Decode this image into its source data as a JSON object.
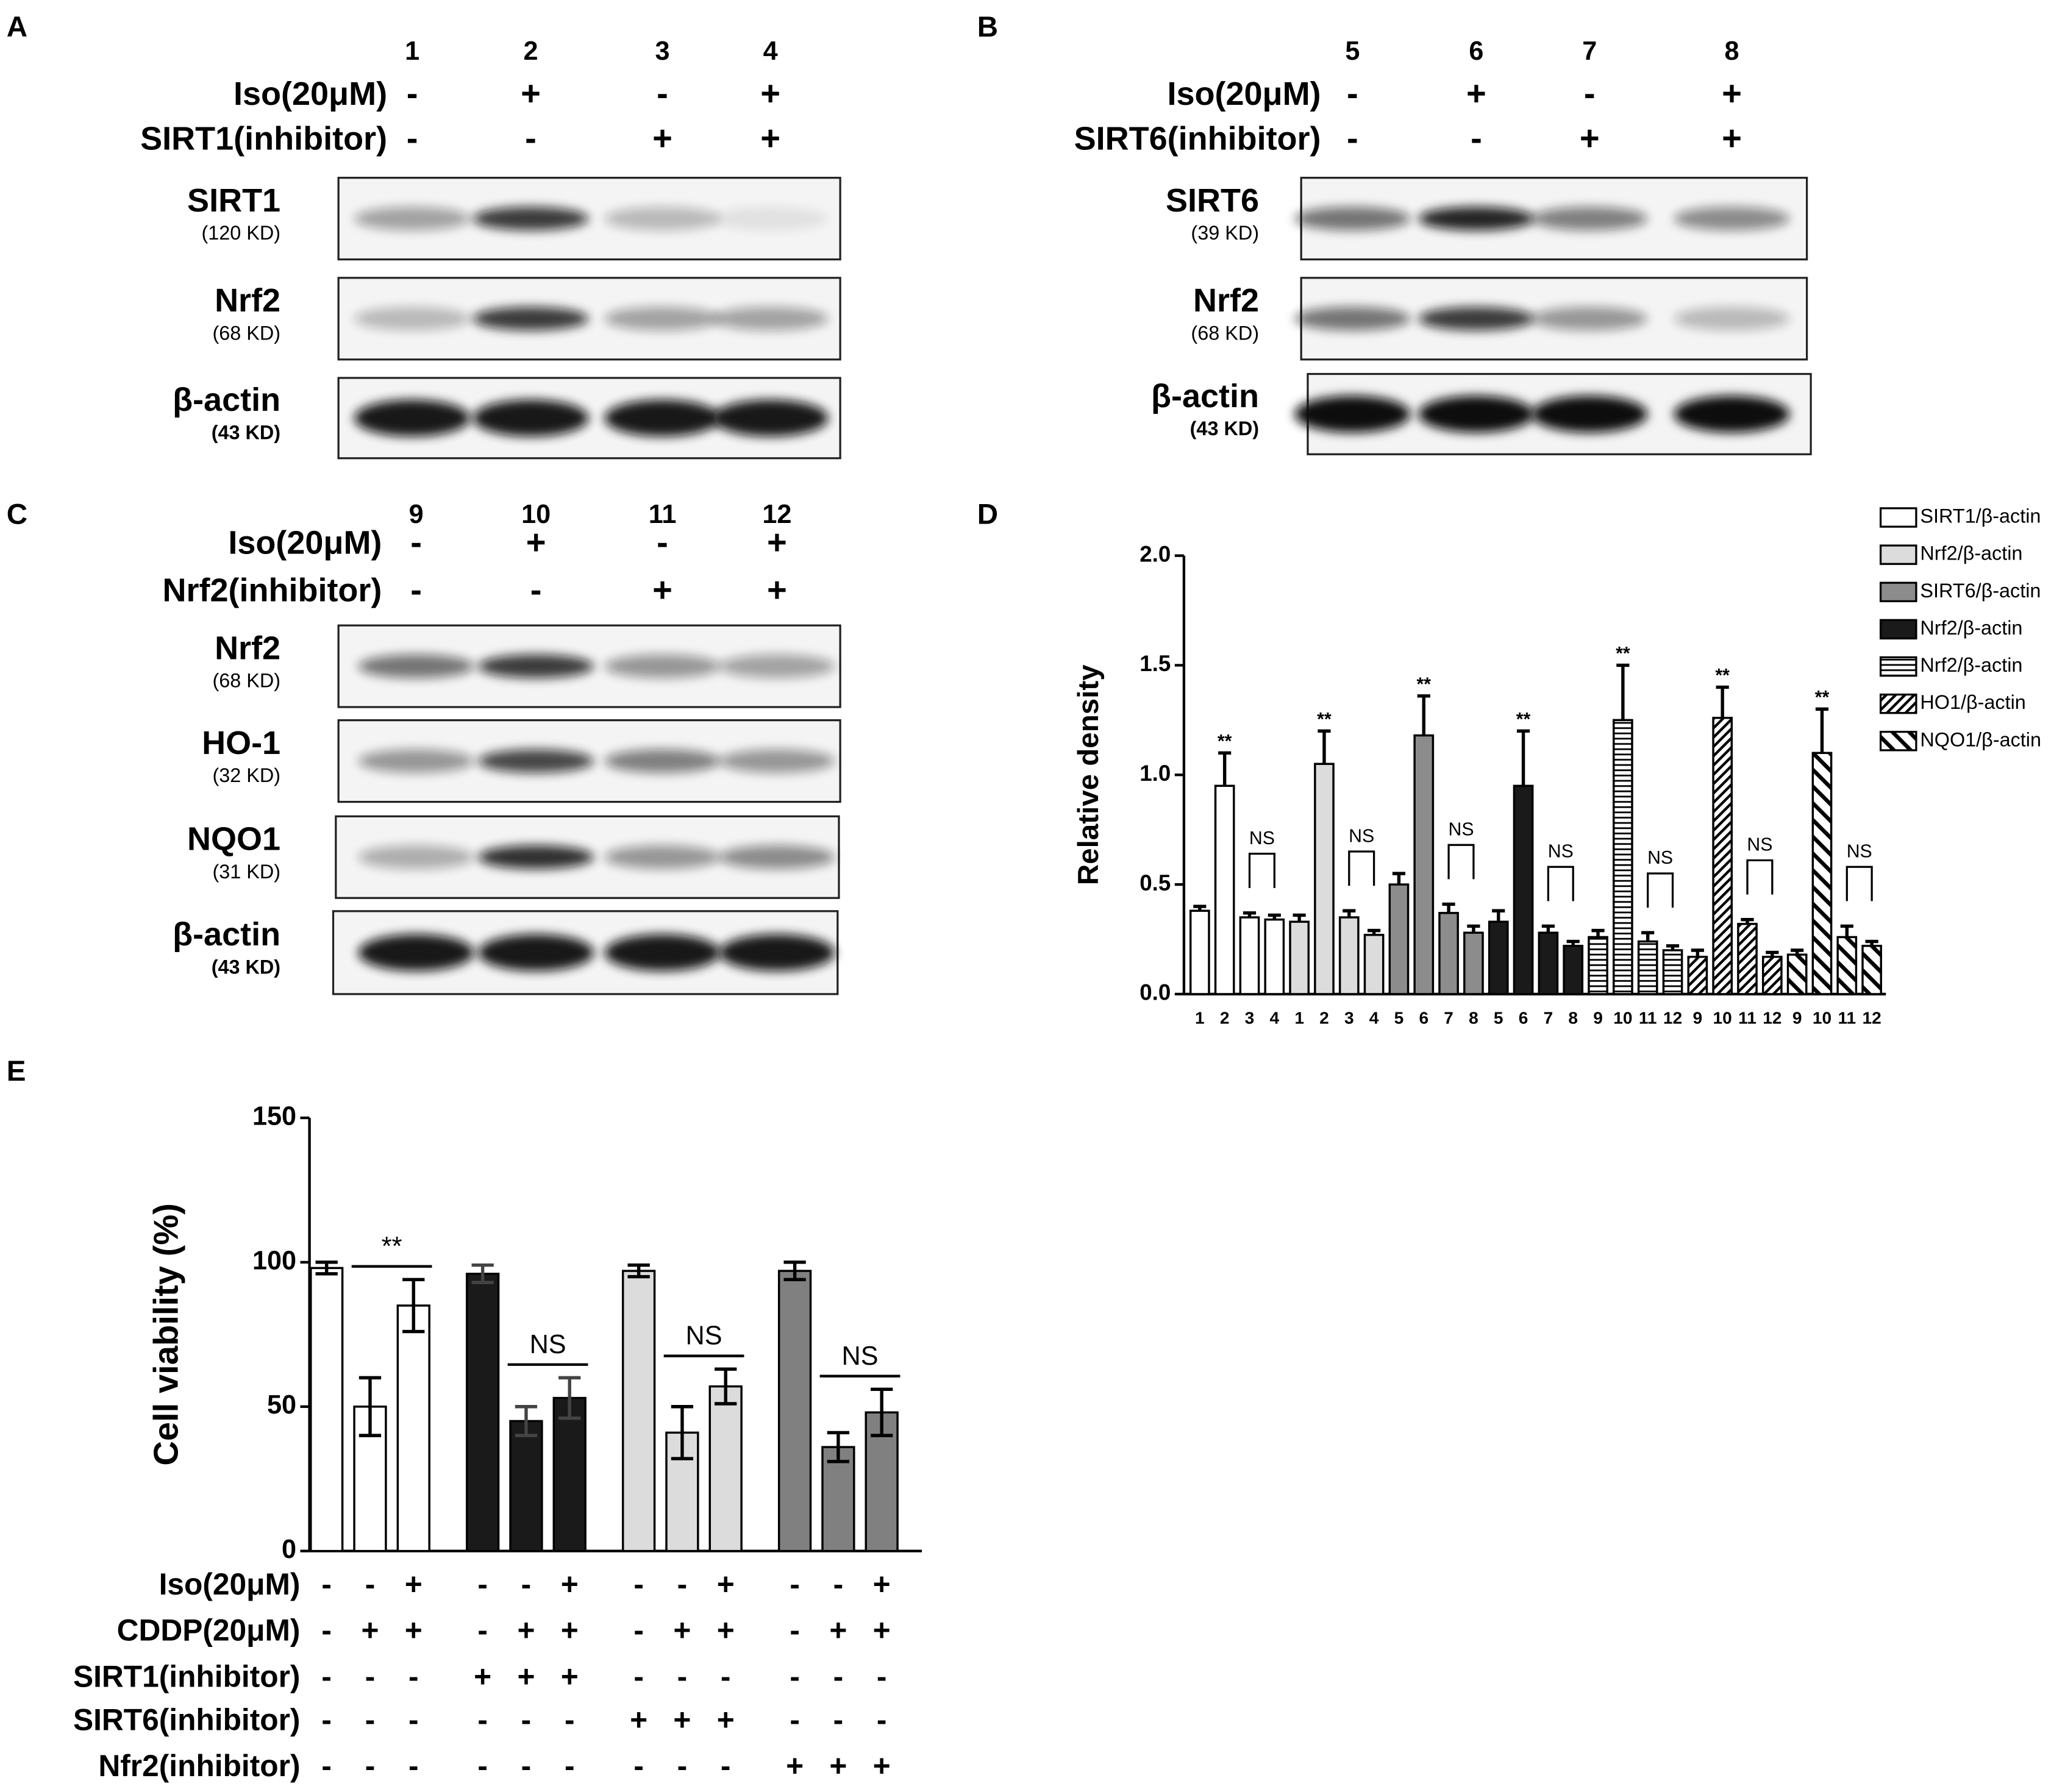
{
  "blots": [
    {
      "label": "A",
      "lanes": [
        "1",
        "2",
        "3",
        "4"
      ],
      "conditions": [
        {
          "name": "Iso(20μM)",
          "signs": [
            "-",
            "+",
            "-",
            "+"
          ]
        },
        {
          "name": "SIRT1(inhibitor)",
          "signs": [
            "-",
            "-",
            "+",
            "+"
          ]
        }
      ],
      "bands": [
        {
          "name": "SIRT1",
          "size": "(120 KD)"
        },
        {
          "name": "Nrf2",
          "size": "(68 KD)"
        },
        {
          "name": "β-actin",
          "size": "(43 KD)"
        }
      ]
    },
    {
      "label": "B",
      "lanes": [
        "5",
        "6",
        "7",
        "8"
      ],
      "conditions": [
        {
          "name": "Iso(20μM)",
          "signs": [
            "-",
            "+",
            "-",
            "+"
          ]
        },
        {
          "name": "SIRT6(inhibitor)",
          "signs": [
            "-",
            "-",
            "+",
            "+"
          ]
        }
      ],
      "bands": [
        {
          "name": "SIRT6",
          "size": "(39 KD)"
        },
        {
          "name": "Nrf2",
          "size": "(68 KD)"
        },
        {
          "name": "β-actin",
          "size": "(43 KD)"
        }
      ]
    },
    {
      "label": "C",
      "lanes": [
        "9",
        "10",
        "11",
        "12"
      ],
      "conditions": [
        {
          "name": "Iso(20μM)",
          "signs": [
            "-",
            "+",
            "-",
            "+"
          ]
        },
        {
          "name": "Nrf2(inhibitor)",
          "signs": [
            "-",
            "-",
            "+",
            "+"
          ]
        }
      ],
      "bands": [
        {
          "name": "Nrf2",
          "size": "(68 KD)"
        },
        {
          "name": "HO-1",
          "size": "(32 KD)"
        },
        {
          "name": "NQO1",
          "size": "(31 KD)"
        },
        {
          "name": "β-actin",
          "size": "(43 KD)"
        }
      ]
    }
  ],
  "chart_data": [
    {
      "label": "D",
      "type": "bar",
      "ylabel": "Relative density",
      "categories": [
        "1",
        "2",
        "3",
        "4",
        "1",
        "2",
        "3",
        "4",
        "5",
        "6",
        "7",
        "8",
        "5",
        "6",
        "7",
        "8",
        "9",
        "10",
        "11",
        "12",
        "9",
        "10",
        "11",
        "12",
        "9",
        "10",
        "11",
        "12"
      ],
      "ylim": [
        0,
        2
      ],
      "yticks": [
        {
          "value": 0,
          "label": "0.0"
        },
        {
          "value": 0.5,
          "label": "0.5"
        },
        {
          "value": 1,
          "label": "1.0"
        },
        {
          "value": 1.5,
          "label": "1.5"
        },
        {
          "value": 2,
          "label": "2.0"
        }
      ],
      "series": [
        {
          "name": "SIRT1/β-actin",
          "color": "#ffffff",
          "values": [
            0.38,
            0.95,
            0.35,
            0.34,
            null,
            null,
            null,
            null,
            null,
            null,
            null,
            null,
            null,
            null,
            null,
            null,
            null,
            null,
            null,
            null,
            null,
            null,
            null,
            null,
            null,
            null,
            null,
            null
          ],
          "errors": [
            0.02,
            0.15,
            0.02,
            0.02,
            null,
            null,
            null,
            null,
            null,
            null,
            null,
            null,
            null,
            null,
            null,
            null,
            null,
            null,
            null,
            null,
            null,
            null,
            null,
            null,
            null,
            null,
            null,
            null
          ]
        },
        {
          "name": "Nrf2/β-actin",
          "color": "#dcdcdc",
          "values": [
            null,
            null,
            null,
            null,
            0.33,
            1.05,
            0.35,
            0.27,
            null,
            null,
            null,
            null,
            null,
            null,
            null,
            null,
            null,
            null,
            null,
            null,
            null,
            null,
            null,
            null,
            null,
            null,
            null,
            null
          ],
          "errors": [
            null,
            null,
            null,
            null,
            0.03,
            0.15,
            0.03,
            0.02,
            null,
            null,
            null,
            null,
            null,
            null,
            null,
            null,
            null,
            null,
            null,
            null,
            null,
            null,
            null,
            null,
            null,
            null,
            null,
            null
          ]
        },
        {
          "name": "SIRT6/β-actin",
          "color": "#8c8c8c",
          "values": [
            null,
            null,
            null,
            null,
            null,
            null,
            null,
            null,
            0.5,
            1.18,
            0.37,
            0.28,
            null,
            null,
            null,
            null,
            null,
            null,
            null,
            null,
            null,
            null,
            null,
            null,
            null,
            null,
            null,
            null
          ],
          "errors": [
            null,
            null,
            null,
            null,
            null,
            null,
            null,
            null,
            0.05,
            0.18,
            0.04,
            0.03,
            null,
            null,
            null,
            null,
            null,
            null,
            null,
            null,
            null,
            null,
            null,
            null,
            null,
            null,
            null,
            null
          ]
        },
        {
          "name": "Nrf2/β-actin",
          "color": "#1a1a1a",
          "values": [
            null,
            null,
            null,
            null,
            null,
            null,
            null,
            null,
            null,
            null,
            null,
            null,
            0.33,
            0.95,
            0.28,
            0.22,
            null,
            null,
            null,
            null,
            null,
            null,
            null,
            null,
            null,
            null,
            null,
            null
          ],
          "errors": [
            null,
            null,
            null,
            null,
            null,
            null,
            null,
            null,
            null,
            null,
            null,
            null,
            0.05,
            0.25,
            0.03,
            0.02,
            null,
            null,
            null,
            null,
            null,
            null,
            null,
            null,
            null,
            null,
            null,
            null
          ]
        },
        {
          "name": "Nrf2/β-actin",
          "color": "#ffffff",
          "pattern": "hstripe",
          "values": [
            null,
            null,
            null,
            null,
            null,
            null,
            null,
            null,
            null,
            null,
            null,
            null,
            null,
            null,
            null,
            null,
            0.26,
            1.25,
            0.24,
            0.2,
            null,
            null,
            null,
            null,
            null,
            null,
            null,
            null
          ],
          "errors": [
            null,
            null,
            null,
            null,
            null,
            null,
            null,
            null,
            null,
            null,
            null,
            null,
            null,
            null,
            null,
            null,
            0.03,
            0.25,
            0.04,
            0.02,
            null,
            null,
            null,
            null,
            null,
            null,
            null,
            null
          ]
        },
        {
          "name": "HO1/β-actin",
          "color": "#ffffff",
          "pattern": "diag",
          "values": [
            null,
            null,
            null,
            null,
            null,
            null,
            null,
            null,
            null,
            null,
            null,
            null,
            null,
            null,
            null,
            null,
            null,
            null,
            null,
            null,
            0.17,
            1.26,
            0.32,
            0.17,
            null,
            null,
            null,
            null
          ],
          "errors": [
            null,
            null,
            null,
            null,
            null,
            null,
            null,
            null,
            null,
            null,
            null,
            null,
            null,
            null,
            null,
            null,
            null,
            null,
            null,
            null,
            0.03,
            0.14,
            0.02,
            0.02,
            null,
            null,
            null,
            null
          ]
        },
        {
          "name": "NQO1/β-actin",
          "color": "#ffffff",
          "pattern": "wdiag",
          "values": [
            null,
            null,
            null,
            null,
            null,
            null,
            null,
            null,
            null,
            null,
            null,
            null,
            null,
            null,
            null,
            null,
            null,
            null,
            null,
            null,
            null,
            null,
            null,
            null,
            0.18,
            1.1,
            0.26,
            0.22
          ],
          "errors": [
            null,
            null,
            null,
            null,
            null,
            null,
            null,
            null,
            null,
            null,
            null,
            null,
            null,
            null,
            null,
            null,
            null,
            null,
            null,
            null,
            null,
            null,
            null,
            null,
            0.02,
            0.2,
            0.05,
            0.02
          ]
        }
      ],
      "significance": [
        null,
        "**",
        "NS",
        null,
        null,
        "**",
        "NS",
        null,
        null,
        "**",
        "NS",
        null,
        null,
        "**",
        "NS",
        null,
        null,
        "**",
        "NS",
        null,
        null,
        "**",
        "NS",
        null,
        null,
        "**",
        "NS",
        null
      ]
    },
    {
      "label": "E",
      "type": "bar",
      "ylabel": "Cell viability (%)",
      "ylim": [
        0,
        150
      ],
      "yticks": [
        0,
        50,
        100,
        150
      ],
      "values": [
        98,
        50,
        85,
        96,
        45,
        53,
        97,
        41,
        57,
        97,
        36,
        48
      ],
      "errors": [
        2,
        10,
        9,
        3,
        5,
        7,
        2,
        9,
        6,
        3,
        5,
        8
      ],
      "colors": [
        "#ffffff",
        "#ffffff",
        "#ffffff",
        "#1a1a1a",
        "#1a1a1a",
        "#1a1a1a",
        "#dcdcdc",
        "#dcdcdc",
        "#dcdcdc",
        "#808080",
        "#808080",
        "#808080"
      ],
      "significance": [
        null,
        "**",
        null,
        null,
        "NS",
        null,
        null,
        "NS",
        null,
        null,
        "NS",
        null
      ],
      "conditions": [
        {
          "name": "Iso(20μM)",
          "signs": [
            "-",
            "-",
            "+",
            "-",
            "-",
            "+",
            "-",
            "-",
            "+",
            "-",
            "-",
            "+"
          ]
        },
        {
          "name": "CDDP(20μM)",
          "signs": [
            "-",
            "+",
            "+",
            "-",
            "+",
            "+",
            "-",
            "+",
            "+",
            "-",
            "+",
            "+"
          ]
        },
        {
          "name": "SIRT1(inhibitor)",
          "signs": [
            "-",
            "-",
            "-",
            "+",
            "+",
            "+",
            "-",
            "-",
            "-",
            "-",
            "-",
            "-"
          ]
        },
        {
          "name": "SIRT6(inhibitor)",
          "signs": [
            "-",
            "-",
            "-",
            "-",
            "-",
            "-",
            "+",
            "+",
            "+",
            "-",
            "-",
            "-"
          ]
        },
        {
          "name": "Nfr2(inhibitor)",
          "signs": [
            "-",
            "-",
            "-",
            "-",
            "-",
            "-",
            "-",
            "-",
            "-",
            "+",
            "+",
            "+"
          ]
        }
      ]
    }
  ]
}
